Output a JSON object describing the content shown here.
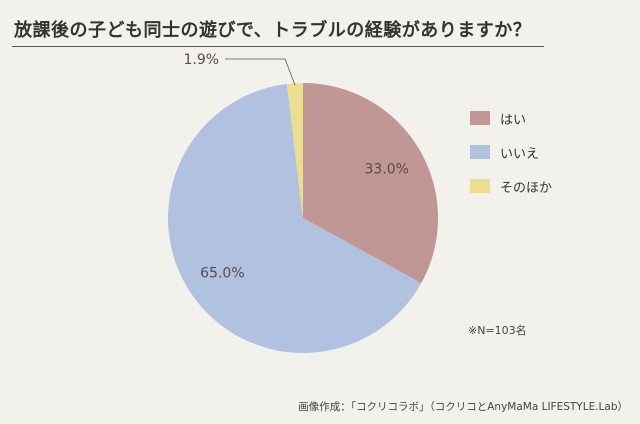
{
  "title": "放課後の子ども同士の遊びで、トラブルの経験がありますか？",
  "note": "※N=103名",
  "credit": "画像作成：「コクリコラボ」（コクリコとAnyMaMa LIFESTYLE.Lab）",
  "chart_data": {
    "type": "pie",
    "title": "放課後の子ども同士の遊びで、トラブルの経験がありますか？",
    "start_angle_deg": 0,
    "direction": "clockwise",
    "legend_position": "right",
    "slices": [
      {
        "label": "はい",
        "value": 33.0,
        "value_label": "33.0%",
        "color": "#c09795"
      },
      {
        "label": "いいえ",
        "value": 65.0,
        "value_label": "65.0%",
        "color": "#b1c2e0"
      },
      {
        "label": "そのほか",
        "value": 1.9,
        "value_label": "1.9%",
        "color": "#eddd91"
      }
    ]
  }
}
